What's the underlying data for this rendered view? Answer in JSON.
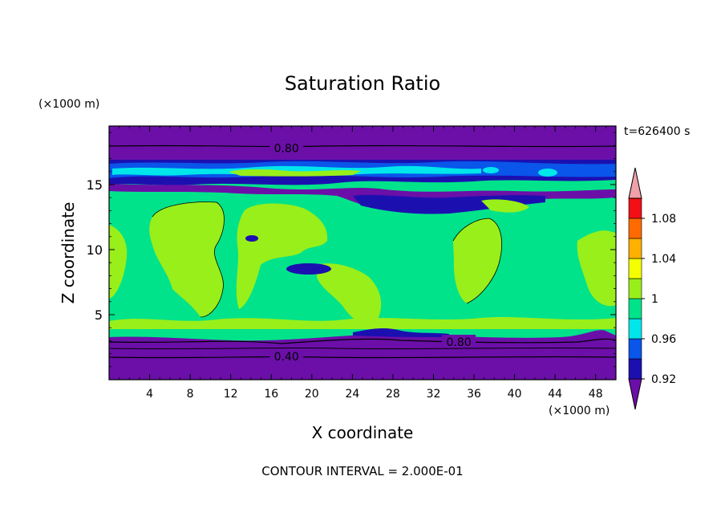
{
  "chart_data": {
    "type": "heatmap",
    "title": "Saturation Ratio",
    "xlabel": "X coordinate",
    "ylabel": "Z coordinate",
    "x_unit": "(×1000 m)",
    "y_unit": "(×1000 m)",
    "time_label": "t=626400 s",
    "footer": "CONTOUR INTERVAL = 2.000E-01",
    "xlim": [
      0,
      50
    ],
    "ylim": [
      0,
      19.5
    ],
    "x_ticks": [
      4,
      8,
      12,
      16,
      20,
      24,
      28,
      32,
      36,
      40,
      44,
      48
    ],
    "x_tick_labels": [
      "4",
      "8",
      "12",
      "16",
      "20",
      "24",
      "28",
      "32",
      "36",
      "40",
      "44",
      "48"
    ],
    "y_ticks": [
      5,
      10,
      15
    ],
    "y_tick_labels": [
      "5",
      "10",
      "15"
    ],
    "contour_labels": [
      {
        "text": "0.80",
        "x": 17.5,
        "y": 17.8
      },
      {
        "text": "0.80",
        "x": 34.5,
        "y": 2.9
      },
      {
        "text": "0.40",
        "x": 17.5,
        "y": 1.8
      }
    ],
    "colorbar": {
      "levels": [
        0.92,
        0.94,
        0.96,
        0.98,
        1.0,
        1.02,
        1.04,
        1.06,
        1.08,
        1.1
      ],
      "colors": [
        "#6b0fa8",
        "#1c0fb0",
        "#0a55ea",
        "#00e6ea",
        "#00e38a",
        "#99ef1a",
        "#f5ff00",
        "#ffb000",
        "#ff6a00",
        "#f20f15",
        "#f0a0a8"
      ],
      "tick_labels": [
        "0.92",
        "0.96",
        "1",
        "1.04",
        "1.08"
      ],
      "tick_values": [
        0.92,
        0.96,
        1.0,
        1.04,
        1.08
      ]
    }
  }
}
